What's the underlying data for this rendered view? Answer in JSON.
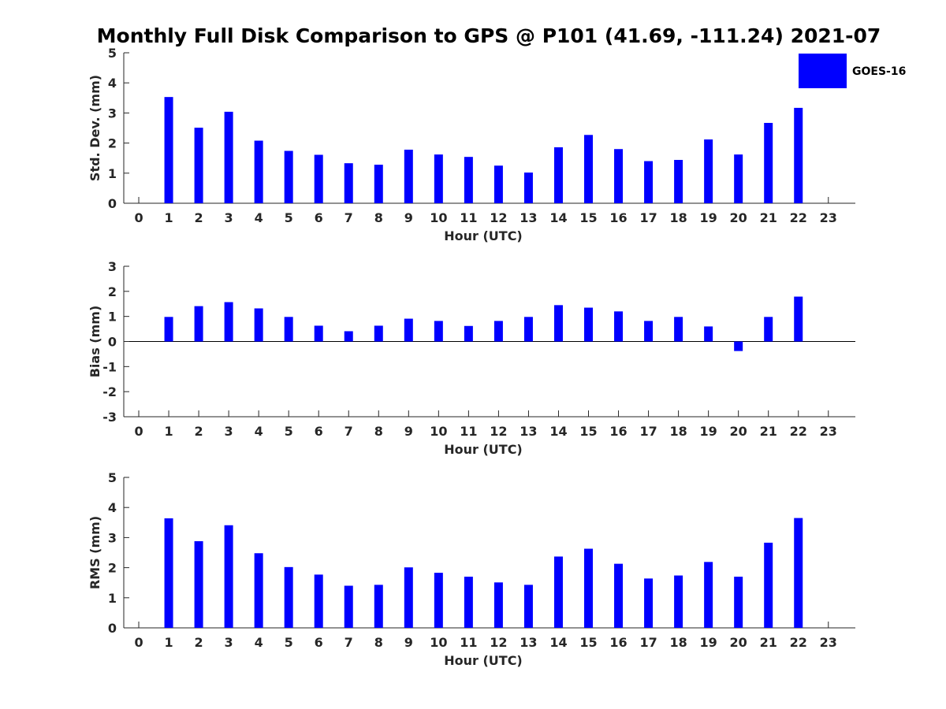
{
  "title": "Monthly Full Disk Comparison to GPS @ P101 (41.69, -111.24) 2021-07",
  "legend": {
    "label": "GOES-16",
    "color": "#0000ff",
    "placement": "top-right"
  },
  "chart_data": [
    {
      "type": "bar",
      "xlabel": "Hour (UTC)",
      "ylabel": "Std. Dev. (mm)",
      "ylim": [
        0,
        5
      ],
      "yticks": [
        0,
        1,
        2,
        3,
        4,
        5
      ],
      "xlim": [
        -0.5,
        23.9
      ],
      "categories": [
        0,
        1,
        2,
        3,
        4,
        5,
        6,
        7,
        8,
        9,
        10,
        11,
        12,
        13,
        14,
        15,
        16,
        17,
        18,
        19,
        20,
        21,
        22,
        23
      ],
      "series": [
        {
          "name": "GOES-16",
          "values": [
            null,
            3.53,
            2.51,
            3.04,
            2.08,
            1.74,
            1.61,
            1.33,
            1.28,
            1.78,
            1.62,
            1.54,
            1.25,
            1.02,
            1.86,
            2.27,
            1.8,
            1.4,
            1.44,
            2.12,
            1.62,
            2.67,
            3.17,
            null
          ]
        }
      ],
      "grid": false
    },
    {
      "type": "bar",
      "xlabel": "Hour (UTC)",
      "ylabel": "Bias (mm)",
      "ylim": [
        -3,
        3
      ],
      "yticks": [
        -3,
        -2,
        -1,
        0,
        1,
        2,
        3
      ],
      "xlim": [
        -0.5,
        23.9
      ],
      "categories": [
        0,
        1,
        2,
        3,
        4,
        5,
        6,
        7,
        8,
        9,
        10,
        11,
        12,
        13,
        14,
        15,
        16,
        17,
        18,
        19,
        20,
        21,
        22,
        23
      ],
      "series": [
        {
          "name": "GOES-16",
          "values": [
            null,
            0.98,
            1.41,
            1.57,
            1.32,
            0.98,
            0.63,
            0.41,
            0.63,
            0.91,
            0.82,
            0.62,
            0.82,
            0.98,
            1.45,
            1.35,
            1.2,
            0.82,
            0.98,
            0.6,
            -0.38,
            0.98,
            1.79,
            null
          ]
        }
      ],
      "grid": false
    },
    {
      "type": "bar",
      "xlabel": "Hour (UTC)",
      "ylabel": "RMS (mm)",
      "ylim": [
        0,
        5
      ],
      "yticks": [
        0,
        1,
        2,
        3,
        4,
        5
      ],
      "xlim": [
        -0.5,
        23.9
      ],
      "categories": [
        0,
        1,
        2,
        3,
        4,
        5,
        6,
        7,
        8,
        9,
        10,
        11,
        12,
        13,
        14,
        15,
        16,
        17,
        18,
        19,
        20,
        21,
        22,
        23
      ],
      "series": [
        {
          "name": "GOES-16",
          "values": [
            null,
            3.64,
            2.88,
            3.41,
            2.48,
            2.02,
            1.77,
            1.4,
            1.43,
            2.01,
            1.83,
            1.7,
            1.51,
            1.43,
            2.37,
            2.63,
            2.13,
            1.64,
            1.74,
            2.19,
            1.7,
            2.83,
            3.65,
            null
          ]
        }
      ],
      "grid": false
    }
  ]
}
